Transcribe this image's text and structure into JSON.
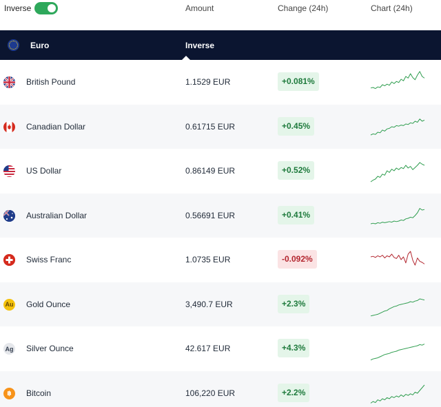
{
  "header": {
    "inverse_label": "Inverse",
    "inverse_on": true,
    "col_amount": "Amount",
    "col_change": "Change (24h)",
    "col_chart": "Chart (24h)"
  },
  "base": {
    "name": "Euro",
    "flag_icon": "eu-flag-icon",
    "inverse_label": "Inverse"
  },
  "colors": {
    "header_bg": "#0b1530",
    "toggle_on": "#2ea85b",
    "up": "#1e7a3c",
    "up_bg": "#e4f5e9",
    "down": "#b3262f",
    "down_bg": "#fbe3e4"
  },
  "rows": [
    {
      "name": "British Pound",
      "icon": "uk-flag-icon",
      "amount": "1.1529 EUR",
      "change": "+0.081%",
      "direction": "up",
      "spark": [
        0.72,
        0.7,
        0.74,
        0.68,
        0.7,
        0.6,
        0.64,
        0.58,
        0.62,
        0.5,
        0.56,
        0.48,
        0.52,
        0.4,
        0.46,
        0.3,
        0.36,
        0.2,
        0.34,
        0.42,
        0.25,
        0.12,
        0.3,
        0.36
      ]
    },
    {
      "name": "Canadian Dollar",
      "icon": "canada-flag-icon",
      "amount": "0.61715 EUR",
      "change": "+0.45%",
      "direction": "up",
      "spark": [
        0.8,
        0.76,
        0.78,
        0.7,
        0.72,
        0.62,
        0.66,
        0.58,
        0.56,
        0.5,
        0.52,
        0.46,
        0.48,
        0.44,
        0.46,
        0.4,
        0.42,
        0.36,
        0.38,
        0.3,
        0.34,
        0.22,
        0.3,
        0.26
      ]
    },
    {
      "name": "US Dollar",
      "icon": "us-flag-icon",
      "amount": "0.86149 EUR",
      "change": "+0.52%",
      "direction": "up",
      "spark": [
        0.9,
        0.84,
        0.8,
        0.7,
        0.74,
        0.62,
        0.66,
        0.5,
        0.56,
        0.44,
        0.5,
        0.4,
        0.46,
        0.38,
        0.42,
        0.3,
        0.4,
        0.34,
        0.46,
        0.38,
        0.3,
        0.2,
        0.26,
        0.3
      ]
    },
    {
      "name": "Australian Dollar",
      "icon": "australia-flag-icon",
      "amount": "0.56691 EUR",
      "change": "+0.41%",
      "direction": "up",
      "spark": [
        0.8,
        0.78,
        0.8,
        0.76,
        0.78,
        0.74,
        0.76,
        0.74,
        0.72,
        0.74,
        0.7,
        0.72,
        0.7,
        0.66,
        0.68,
        0.62,
        0.6,
        0.56,
        0.58,
        0.5,
        0.4,
        0.24,
        0.3,
        0.28
      ]
    },
    {
      "name": "Swiss Franc",
      "icon": "swiss-flag-icon",
      "amount": "1.0735 EUR",
      "change": "-0.092%",
      "direction": "down",
      "spark": [
        0.4,
        0.38,
        0.42,
        0.36,
        0.4,
        0.34,
        0.44,
        0.36,
        0.4,
        0.3,
        0.42,
        0.46,
        0.34,
        0.5,
        0.4,
        0.62,
        0.3,
        0.2,
        0.52,
        0.7,
        0.44,
        0.56,
        0.6,
        0.66
      ]
    },
    {
      "name": "Gold Ounce",
      "icon": "gold-au-icon",
      "amount": "3,490.7 EUR",
      "change": "+2.3%",
      "direction": "up",
      "spark": [
        0.92,
        0.9,
        0.88,
        0.86,
        0.82,
        0.78,
        0.74,
        0.72,
        0.66,
        0.62,
        0.58,
        0.56,
        0.52,
        0.5,
        0.48,
        0.46,
        0.44,
        0.4,
        0.42,
        0.38,
        0.36,
        0.3,
        0.32,
        0.34
      ]
    },
    {
      "name": "Silver Ounce",
      "icon": "silver-ag-icon",
      "amount": "42.617 EUR",
      "change": "+4.3%",
      "direction": "up",
      "spark": [
        0.92,
        0.88,
        0.86,
        0.84,
        0.8,
        0.76,
        0.72,
        0.7,
        0.68,
        0.64,
        0.62,
        0.6,
        0.56,
        0.54,
        0.52,
        0.5,
        0.48,
        0.46,
        0.44,
        0.42,
        0.4,
        0.36,
        0.38,
        0.34
      ]
    },
    {
      "name": "Bitcoin",
      "icon": "bitcoin-icon",
      "amount": "106,220 EUR",
      "change": "+2.2%",
      "direction": "up",
      "spark": [
        0.86,
        0.8,
        0.84,
        0.74,
        0.78,
        0.7,
        0.74,
        0.66,
        0.7,
        0.62,
        0.66,
        0.6,
        0.64,
        0.56,
        0.62,
        0.54,
        0.58,
        0.52,
        0.56,
        0.46,
        0.5,
        0.4,
        0.3,
        0.2
      ]
    }
  ]
}
